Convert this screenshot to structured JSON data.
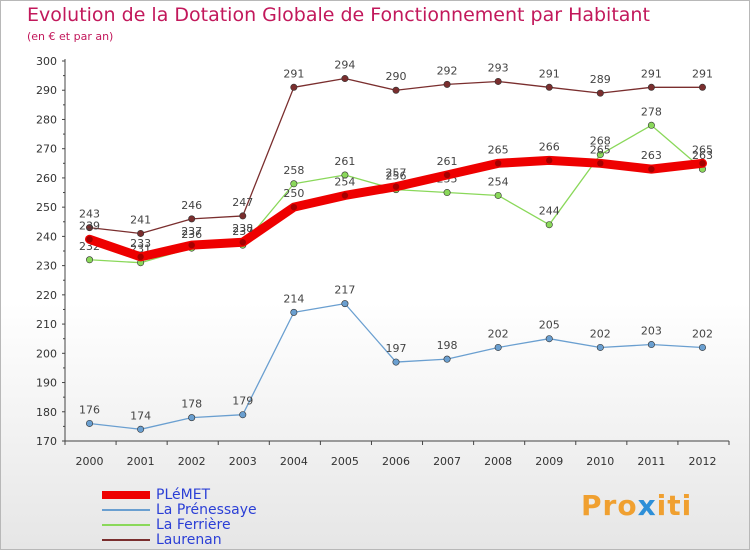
{
  "header": {
    "title": "Evolution de la Dotation Globale de Fonctionnement par Habitant",
    "subtitle": "(en € et par an)"
  },
  "brand": {
    "part1": "Pro",
    "part2": "x",
    "part3": "iti"
  },
  "chart_data": {
    "type": "line",
    "title": "Evolution de la Dotation Globale de Fonctionnement par Habitant",
    "subtitle": "(en € et par an)",
    "xlabel": "",
    "ylabel": "",
    "ylim": [
      170,
      300
    ],
    "y_ticks": [
      170,
      180,
      190,
      200,
      210,
      220,
      230,
      240,
      250,
      260,
      270,
      280,
      290,
      300
    ],
    "grid": false,
    "legend_position": "bottom-left",
    "categories": [
      "2000",
      "2001",
      "2002",
      "2003",
      "2004",
      "2005",
      "2006",
      "2007",
      "2008",
      "2009",
      "2010",
      "2011",
      "2012"
    ],
    "series": [
      {
        "name": "Laurenan",
        "color": "#7a2e2e",
        "values": [
          243,
          241,
          246,
          247,
          291,
          294,
          290,
          292,
          293,
          291,
          289,
          291,
          291
        ]
      },
      {
        "name": "La Ferrière",
        "color": "#8ad85a",
        "values": [
          232,
          231,
          236,
          237,
          258,
          261,
          256,
          255,
          254,
          244,
          268,
          278,
          263
        ]
      },
      {
        "name": "La Prénessaye",
        "color": "#6a9fd0",
        "values": [
          176,
          174,
          178,
          179,
          214,
          217,
          197,
          198,
          202,
          205,
          202,
          203,
          202
        ]
      },
      {
        "name": "PLéMET",
        "color": "#ee0000",
        "values": [
          239,
          233,
          237,
          238,
          250,
          254,
          257,
          261,
          265,
          266,
          265,
          263,
          265
        ]
      }
    ],
    "legend": [
      "PLéMET",
      "La Prénessaye",
      "La Ferrière",
      "Laurenan"
    ]
  }
}
